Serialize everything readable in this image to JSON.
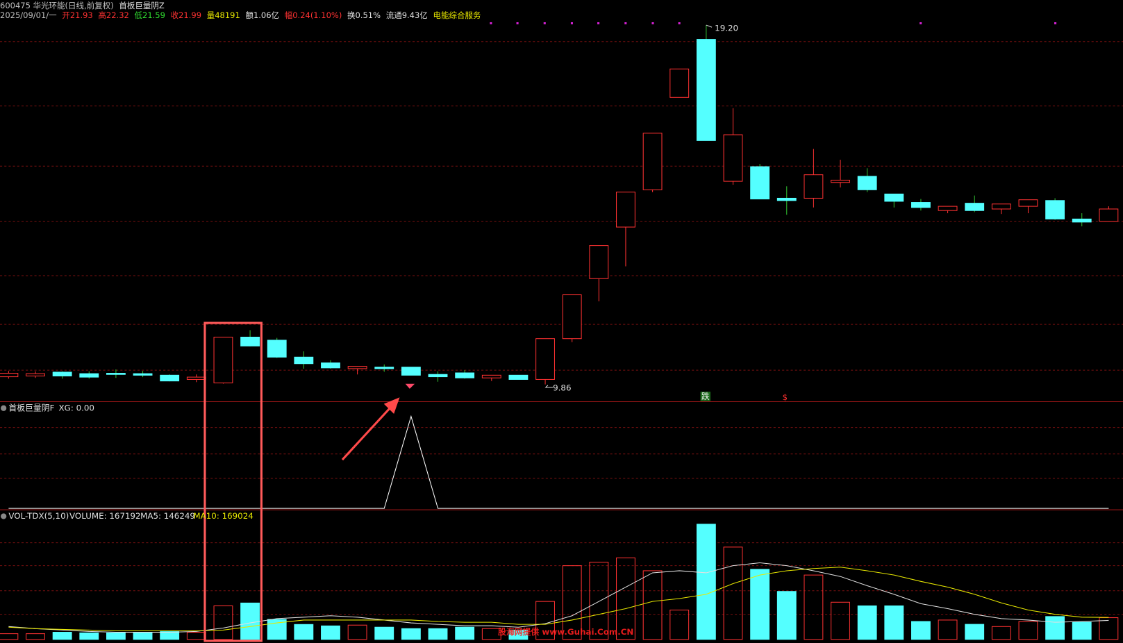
{
  "header": {
    "stock": "600475 华光环能(日线,前复权)",
    "formula": "首板巨量阴Z",
    "date": "2025/09/01/一",
    "quote": [
      "开21.93",
      "高22.32",
      "低21.59",
      "收21.99",
      "量48191",
      "额1.06亿",
      "幅0.24(1.10%)",
      "换0.51%",
      "流通9.43亿"
    ],
    "sector": "电能综合服务"
  },
  "chart_data": {
    "type": "candlestick",
    "price": {
      "ylim": [
        9.43,
        19.48
      ],
      "up_color": "#ff3232",
      "down_color": "#54ffff",
      "open": [
        10.06,
        10.08,
        10.18,
        10.14,
        10.15,
        10.14,
        10.1,
        9.99,
        9.9,
        11.09,
        11.01,
        10.57,
        10.42,
        10.27,
        10.31,
        10.31,
        10.12,
        10.16,
        10.03,
        10.1,
        9.99,
        11.05,
        12.61,
        13.95,
        14.92,
        17.32,
        18.83,
        15.14,
        15.52,
        14.7,
        14.7,
        15.11,
        15.27,
        14.81,
        14.59,
        14.38,
        14.57,
        14.42,
        14.49,
        14.64,
        14.16,
        14.1
      ],
      "high": [
        10.21,
        10.2,
        10.2,
        10.2,
        10.25,
        10.21,
        10.12,
        10.12,
        11.09,
        11.27,
        11.07,
        10.72,
        10.49,
        10.33,
        10.38,
        10.31,
        10.2,
        10.23,
        10.1,
        10.1,
        11.05,
        12.19,
        13.47,
        14.86,
        16.39,
        18.06,
        19.2,
        17.04,
        15.59,
        15.01,
        15.98,
        15.7,
        15.48,
        14.81,
        14.68,
        14.49,
        14.77,
        14.55,
        14.66,
        14.7,
        14.31,
        14.49
      ],
      "low": [
        10.01,
        10.03,
        10.01,
        10.01,
        10.03,
        10.05,
        9.94,
        9.92,
        9.88,
        10.85,
        10.55,
        10.27,
        10.27,
        10.12,
        10.19,
        10.1,
        9.93,
        10.01,
        9.95,
        9.99,
        9.86,
        10.96,
        12.02,
        12.93,
        14.86,
        17.32,
        16.2,
        15.05,
        14.68,
        14.27,
        14.46,
        14.98,
        14.86,
        14.46,
        14.38,
        14.31,
        14.34,
        14.29,
        14.31,
        14.14,
        13.97,
        14.1
      ],
      "close": [
        10.15,
        10.14,
        10.08,
        10.05,
        10.12,
        10.1,
        9.95,
        10.05,
        11.09,
        10.86,
        10.57,
        10.4,
        10.29,
        10.33,
        10.27,
        10.1,
        10.06,
        10.03,
        10.1,
        9.99,
        11.05,
        12.19,
        13.47,
        14.86,
        16.39,
        18.06,
        16.2,
        16.35,
        14.68,
        14.64,
        15.31,
        15.17,
        14.92,
        14.62,
        14.46,
        14.49,
        14.38,
        14.55,
        14.66,
        14.16,
        14.08,
        14.42
      ],
      "high_label": "19.20",
      "low_label": "9.86",
      "signal_fall": "跌",
      "signal_s": "$"
    },
    "xg": {
      "title": "首板巨量阴F",
      "value_label": "XG: 0.00",
      "ylim": [
        0,
        1.05
      ],
      "color": "#ffffff",
      "values": [
        0,
        0,
        0,
        0,
        0,
        0,
        0,
        0,
        0,
        0,
        0,
        0,
        0,
        0,
        0,
        1,
        0,
        0,
        0,
        0,
        0,
        0,
        0,
        0,
        0,
        0,
        0,
        0,
        0,
        0,
        0,
        0,
        0,
        0,
        0,
        0,
        0,
        0,
        0,
        0,
        0,
        0
      ]
    },
    "volume": {
      "title": "VOL-TDX(5,10)",
      "ylim": [
        0,
        980000
      ],
      "labels": [
        "VOLUME: 167192",
        "MA5: 146249",
        "MA10: 169024"
      ],
      "values": [
        44000,
        44000,
        55000,
        50000,
        50000,
        55000,
        60000,
        55000,
        258000,
        280000,
        154000,
        115000,
        104000,
        110000,
        94000,
        83000,
        83000,
        94000,
        83000,
        72000,
        292000,
        567000,
        594000,
        627000,
        528000,
        226000,
        886000,
        710000,
        539000,
        369000,
        495000,
        286000,
        258000,
        258000,
        138000,
        149000,
        116000,
        99000,
        138000,
        176000,
        132000,
        167192
      ],
      "ma5": {
        "color": "#e0e0e0",
        "values": [
          99000,
          83000,
          72000,
          61000,
          55000,
          55000,
          55000,
          61000,
          88000,
          127000,
          160000,
          171000,
          182000,
          171000,
          149000,
          127000,
          116000,
          105000,
          105000,
          94000,
          121000,
          182000,
          292000,
          402000,
          512000,
          528000,
          512000,
          567000,
          589000,
          567000,
          528000,
          484000,
          413000,
          347000,
          275000,
          237000,
          193000,
          160000,
          149000,
          132000,
          138000,
          146249
        ]
      },
      "ma10": {
        "color": "#e8e800",
        "values": [
          94000,
          83000,
          77000,
          72000,
          66000,
          66000,
          66000,
          66000,
          72000,
          99000,
          127000,
          149000,
          149000,
          149000,
          149000,
          149000,
          138000,
          132000,
          132000,
          116000,
          116000,
          149000,
          193000,
          237000,
          292000,
          314000,
          347000,
          429000,
          495000,
          528000,
          545000,
          556000,
          528000,
          495000,
          446000,
          402000,
          347000,
          281000,
          226000,
          193000,
          171000,
          169024
        ]
      }
    },
    "watermark": "股海网提供 www.Guhai.Com.CN"
  }
}
